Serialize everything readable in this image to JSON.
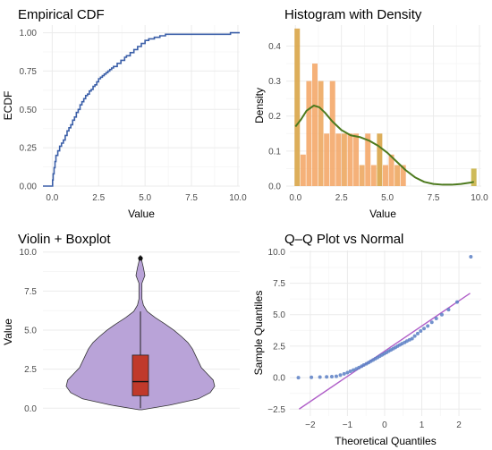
{
  "chart_data": [
    {
      "type": "line",
      "title": "Empirical CDF",
      "xlabel": "Value",
      "ylabel": "ECDF",
      "xlim": [
        -0.5,
        10.1
      ],
      "ylim": [
        0,
        1.05
      ],
      "xticks": [
        0,
        2.5,
        5,
        7.5,
        10
      ],
      "xtick_labels": [
        "0.0",
        "2.5",
        "5.0",
        "7.5",
        "10.0"
      ],
      "yticks": [
        0,
        0.25,
        0.5,
        0.75,
        1
      ],
      "ytick_labels": [
        "0.00",
        "0.25",
        "0.50",
        "0.75",
        "1.00"
      ],
      "grid": true,
      "line_color": "#3b5fa8",
      "x": [
        -0.5,
        0.02,
        0.05,
        0.1,
        0.15,
        0.2,
        0.3,
        0.4,
        0.5,
        0.6,
        0.7,
        0.8,
        0.9,
        1.0,
        1.1,
        1.2,
        1.3,
        1.4,
        1.5,
        1.6,
        1.7,
        1.8,
        1.9,
        2.0,
        2.1,
        2.2,
        2.3,
        2.4,
        2.5,
        2.6,
        2.7,
        2.8,
        2.9,
        3.0,
        3.1,
        3.2,
        3.3,
        3.5,
        3.7,
        3.9,
        4.0,
        4.2,
        4.4,
        4.6,
        4.8,
        5.0,
        5.2,
        5.5,
        5.8,
        6.1,
        6.4,
        9.6,
        10.1
      ],
      "y": [
        0.0,
        0.04,
        0.08,
        0.12,
        0.16,
        0.2,
        0.23,
        0.26,
        0.28,
        0.3,
        0.33,
        0.36,
        0.38,
        0.4,
        0.43,
        0.45,
        0.48,
        0.5,
        0.53,
        0.55,
        0.57,
        0.59,
        0.6,
        0.62,
        0.63,
        0.65,
        0.66,
        0.68,
        0.7,
        0.71,
        0.72,
        0.73,
        0.74,
        0.75,
        0.76,
        0.77,
        0.78,
        0.8,
        0.82,
        0.84,
        0.85,
        0.87,
        0.89,
        0.91,
        0.93,
        0.95,
        0.96,
        0.97,
        0.98,
        0.99,
        0.99,
        1.0,
        1.0
      ]
    },
    {
      "type": "bar",
      "title": "Histogram with Density",
      "xlabel": "Value",
      "ylabel": "Density",
      "xlim": [
        -0.5,
        10.1
      ],
      "ylim": [
        0,
        0.46
      ],
      "xticks": [
        0,
        2.5,
        5,
        7.5,
        10
      ],
      "xtick_labels": [
        "0.0",
        "2.5",
        "5.0",
        "7.5",
        "10.0"
      ],
      "yticks": [
        0,
        0.1,
        0.2,
        0.3,
        0.4
      ],
      "ytick_labels": [
        "0.0",
        "0.1",
        "0.2",
        "0.3",
        "0.4"
      ],
      "grid": true,
      "bin_width": 0.32,
      "bin_starts": [
        -0.05,
        0.27,
        0.59,
        0.91,
        1.23,
        1.55,
        1.87,
        2.19,
        2.51,
        2.83,
        3.15,
        3.47,
        3.79,
        4.11,
        4.43,
        4.75,
        5.07,
        5.39,
        5.71,
        9.55
      ],
      "bar_values": [
        0.45,
        0.09,
        0.3,
        0.35,
        0.3,
        0.15,
        0.3,
        0.15,
        0.15,
        0.15,
        0.15,
        0.06,
        0.15,
        0.06,
        0.15,
        0.06,
        0.09,
        0.06,
        0.06,
        0.05
      ],
      "bar_colors": [
        "#d9a548",
        "#f4a96a",
        "#f4a96a",
        "#f4a96a",
        "#eda962",
        "#f4a96a",
        "#f4a96a",
        "#f4a96a",
        "#eda962",
        "#f4a96a",
        "#f4a96a",
        "#eda962",
        "#f4a96a",
        "#f4a96a",
        "#d9a548",
        "#f4a96a",
        "#f4a96a",
        "#eda962",
        "#f4a96a",
        "#c9b347"
      ],
      "density_color": "#4d7a1e",
      "density_x": [
        0.0,
        0.3,
        0.6,
        1.0,
        1.3,
        1.6,
        2.0,
        2.5,
        3.0,
        3.5,
        4.0,
        4.5,
        5.0,
        5.5,
        6.0,
        6.5,
        7.0,
        7.5,
        8.0,
        8.5,
        9.0,
        9.5,
        9.7
      ],
      "density_y": [
        0.17,
        0.19,
        0.215,
        0.23,
        0.225,
        0.21,
        0.185,
        0.16,
        0.145,
        0.14,
        0.13,
        0.115,
        0.095,
        0.07,
        0.045,
        0.025,
        0.012,
        0.006,
        0.004,
        0.004,
        0.006,
        0.01,
        0.012
      ]
    },
    {
      "type": "violin",
      "title": "Violin + Boxplot",
      "xlabel": "",
      "ylabel": "Value",
      "ylim": [
        -0.5,
        10.1
      ],
      "yticks": [
        0,
        2.5,
        5,
        7.5,
        10
      ],
      "ytick_labels": [
        "0.0",
        "2.5",
        "5.0",
        "7.5",
        "10.0"
      ],
      "grid": true,
      "violin_fill": "#b9a3d8",
      "violin_stroke": "#333333",
      "box_fill": "#c0392b",
      "violin_y": [
        -0.1,
        0.2,
        0.6,
        1.0,
        1.4,
        1.8,
        2.2,
        2.6,
        3.0,
        3.4,
        3.8,
        4.2,
        4.6,
        5.0,
        5.4,
        5.8,
        6.2,
        6.6,
        7.0,
        7.5,
        8.0,
        8.5,
        9.0,
        9.4,
        9.8
      ],
      "violin_halfwidth": [
        0.02,
        0.4,
        0.78,
        0.94,
        1.0,
        0.98,
        0.9,
        0.82,
        0.78,
        0.74,
        0.7,
        0.64,
        0.55,
        0.45,
        0.33,
        0.2,
        0.09,
        0.04,
        0.02,
        0.02,
        0.02,
        0.06,
        0.04,
        0.02,
        0.0
      ],
      "box": {
        "q1": 0.8,
        "median": 1.7,
        "q3": 3.4,
        "whisker_low": 0.0,
        "whisker_high": 6.2
      },
      "outliers": [
        9.6
      ]
    },
    {
      "type": "scatter",
      "title": "Q–Q Plot vs Normal",
      "xlabel": "Theoretical Quantiles",
      "ylabel": "Sample Quantiles",
      "xlim": [
        -2.55,
        2.6
      ],
      "ylim": [
        -3.05,
        10.1
      ],
      "xticks": [
        -2,
        -1,
        0,
        1,
        2
      ],
      "xtick_labels": [
        "−2",
        "−1",
        "0",
        "1",
        "2"
      ],
      "yticks": [
        -2.5,
        0,
        2.5,
        5,
        7.5,
        10
      ],
      "ytick_labels": [
        "−2.5",
        "0.0",
        "2.5",
        "5.0",
        "7.5",
        "10.0"
      ],
      "grid": true,
      "point_color": "#5b7fc4",
      "line_color": "#b05fc8",
      "ref_line": {
        "x0": -2.3,
        "y0": -2.5,
        "x1": 2.3,
        "y1": 6.7
      },
      "x": [
        -2.32,
        -1.97,
        -1.74,
        -1.56,
        -1.42,
        -1.3,
        -1.19,
        -1.09,
        -1.0,
        -0.92,
        -0.84,
        -0.76,
        -0.69,
        -0.62,
        -0.56,
        -0.49,
        -0.43,
        -0.37,
        -0.31,
        -0.25,
        -0.19,
        -0.13,
        -0.07,
        -0.01,
        0.05,
        0.11,
        0.17,
        0.23,
        0.29,
        0.35,
        0.41,
        0.47,
        0.54,
        0.6,
        0.67,
        0.74,
        0.81,
        0.89,
        0.97,
        1.06,
        1.16,
        1.27,
        1.39,
        1.54,
        1.72,
        1.95,
        2.32
      ],
      "y": [
        0.0,
        0.02,
        0.04,
        0.06,
        0.08,
        0.1,
        0.2,
        0.3,
        0.4,
        0.5,
        0.6,
        0.7,
        0.8,
        0.9,
        1.0,
        1.1,
        1.2,
        1.3,
        1.4,
        1.5,
        1.6,
        1.7,
        1.8,
        1.9,
        2.0,
        2.1,
        2.2,
        2.3,
        2.4,
        2.5,
        2.6,
        2.7,
        2.8,
        2.9,
        3.0,
        3.1,
        3.3,
        3.5,
        3.7,
        3.9,
        4.1,
        4.4,
        4.7,
        5.0,
        5.4,
        6.0,
        9.6
      ]
    }
  ]
}
